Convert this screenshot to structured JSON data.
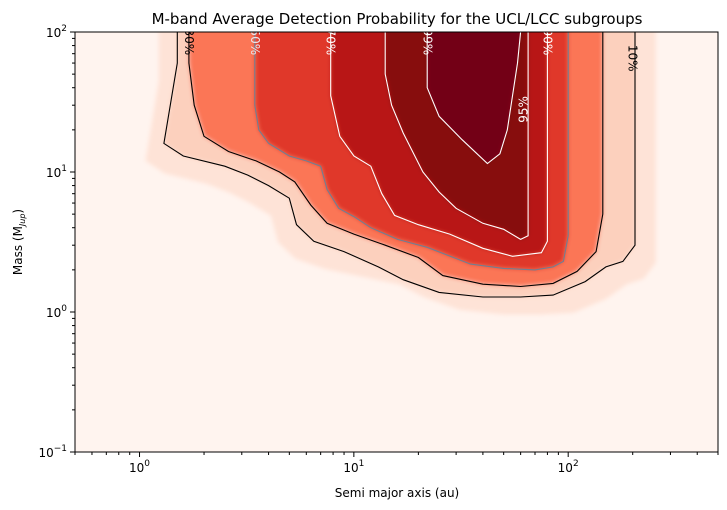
{
  "chart_data": {
    "type": "heatmap",
    "title": "M-band Average Detection Probability for the UCL/LCC subgroups",
    "xlabel": "Semi major axis (au)",
    "ylabel_main": "Mass (M",
    "ylabel_sub": "Jup",
    "ylabel_close": ")",
    "x_scale": "log",
    "y_scale": "log",
    "xlim": [
      0.5,
      500
    ],
    "ylim": [
      0.1,
      100
    ],
    "colormap": "Reds",
    "grid": false,
    "x_ticks": [
      {
        "value": 1,
        "base": "10",
        "exp": "0"
      },
      {
        "value": 10,
        "base": "10",
        "exp": "1"
      },
      {
        "value": 100,
        "base": "10",
        "exp": "2"
      }
    ],
    "y_ticks": [
      {
        "value": 0.1,
        "base": "10",
        "exp": "−1"
      },
      {
        "value": 1,
        "base": "10",
        "exp": "0"
      },
      {
        "value": 10,
        "base": "10",
        "exp": "1"
      },
      {
        "value": 100,
        "base": "10",
        "exp": "2"
      }
    ],
    "contours": [
      {
        "level": 0.1,
        "label": "10%",
        "color": "#000000",
        "label_a": 200,
        "label_m": 65,
        "label_rotation": 90,
        "points": [
          [
            1.5,
            100
          ],
          [
            1.5,
            60
          ],
          [
            1.3,
            16
          ],
          [
            1.6,
            13
          ],
          [
            2.5,
            11
          ],
          [
            3.2,
            9.5
          ],
          [
            4,
            8
          ],
          [
            5,
            6.5
          ],
          [
            5.4,
            4.2
          ],
          [
            6.5,
            3.2
          ],
          [
            9,
            2.7
          ],
          [
            13,
            2.1
          ],
          [
            17,
            1.7
          ],
          [
            25,
            1.38
          ],
          [
            40,
            1.28
          ],
          [
            60,
            1.28
          ],
          [
            85,
            1.32
          ],
          [
            120,
            1.65
          ],
          [
            150,
            2.1
          ],
          [
            180,
            2.3
          ],
          [
            205,
            3.0
          ],
          [
            205,
            40
          ],
          [
            205,
            100
          ]
        ]
      },
      {
        "level": 0.3,
        "label": "30%",
        "color": "#000000",
        "label_a": 1.7,
        "label_m": 85,
        "label_rotation": 90,
        "points": [
          [
            1.7,
            100
          ],
          [
            1.7,
            60
          ],
          [
            1.8,
            30
          ],
          [
            2.0,
            18
          ],
          [
            2.6,
            14
          ],
          [
            3.5,
            12
          ],
          [
            4.5,
            10
          ],
          [
            5.3,
            8.5
          ],
          [
            6.3,
            5.8
          ],
          [
            7.5,
            4.3
          ],
          [
            10,
            3.6
          ],
          [
            14,
            3.0
          ],
          [
            20,
            2.45
          ],
          [
            26,
            1.82
          ],
          [
            40,
            1.58
          ],
          [
            60,
            1.52
          ],
          [
            85,
            1.6
          ],
          [
            110,
            1.95
          ],
          [
            135,
            2.7
          ],
          [
            145,
            5
          ],
          [
            145,
            30
          ],
          [
            145,
            100
          ]
        ]
      },
      {
        "level": 0.5,
        "label": "50%",
        "color": "#6f7f93",
        "label_a": 3.45,
        "label_m": 85,
        "label_rotation": 90,
        "points": [
          [
            3.45,
            100
          ],
          [
            3.45,
            60
          ],
          [
            3.45,
            30
          ],
          [
            3.6,
            20
          ],
          [
            4.0,
            16
          ],
          [
            5.0,
            13
          ],
          [
            6.0,
            12
          ],
          [
            7.0,
            11
          ],
          [
            7.5,
            7.5
          ],
          [
            8.5,
            5.5
          ],
          [
            10,
            4.8
          ],
          [
            12,
            4.0
          ],
          [
            16,
            3.3
          ],
          [
            22,
            2.9
          ],
          [
            35,
            2.2
          ],
          [
            50,
            2.05
          ],
          [
            70,
            2.0
          ],
          [
            85,
            2.1
          ],
          [
            95,
            2.3
          ],
          [
            100,
            3.5
          ],
          [
            100,
            20
          ],
          [
            100,
            100
          ]
        ]
      },
      {
        "level": 0.7,
        "label": "70%",
        "color": "#ffffff",
        "label_a": 7.8,
        "label_m": 85,
        "label_rotation": 90,
        "points": [
          [
            7.8,
            100
          ],
          [
            7.8,
            60
          ],
          [
            7.8,
            35
          ],
          [
            8.6,
            18
          ],
          [
            10,
            13
          ],
          [
            12,
            11
          ],
          [
            13.5,
            7
          ],
          [
            15.5,
            4.9
          ],
          [
            20,
            4.2
          ],
          [
            28,
            3.6
          ],
          [
            40,
            2.85
          ],
          [
            55,
            2.5
          ],
          [
            75,
            2.65
          ],
          [
            80,
            3.2
          ],
          [
            80,
            20
          ],
          [
            80,
            100
          ]
        ]
      },
      {
        "level": 0.9,
        "label": "90%",
        "color": "#ffffff",
        "label_a": 80,
        "label_m": 85,
        "label_rotation": 90,
        "points": [
          [
            14,
            100
          ],
          [
            14,
            50
          ],
          [
            15,
            30
          ],
          [
            17,
            19
          ],
          [
            21,
            10
          ],
          [
            25,
            7.2
          ],
          [
            30,
            5.5
          ],
          [
            40,
            4.3
          ],
          [
            50,
            3.9
          ],
          [
            60,
            3.3
          ],
          [
            65,
            3.5
          ],
          [
            65,
            20
          ],
          [
            65,
            100
          ]
        ]
      },
      {
        "level": 0.95,
        "label": "95%",
        "color": "#ffffff",
        "label_a": 62,
        "label_m": 28,
        "label_rotation": -90,
        "points": [
          [
            22,
            100
          ],
          [
            22,
            50
          ],
          [
            22,
            40
          ],
          [
            25,
            25
          ],
          [
            32,
            17
          ],
          [
            42,
            11.5
          ],
          [
            48,
            13.5
          ],
          [
            52,
            20
          ],
          [
            55,
            35
          ],
          [
            58,
            60
          ],
          [
            60,
            100
          ]
        ]
      },
      {
        "level": 0.99,
        "label": "99%",
        "color": "#ffffff",
        "label_a": 22,
        "label_m": 85,
        "label_rotation": 90,
        "points": []
      }
    ]
  }
}
